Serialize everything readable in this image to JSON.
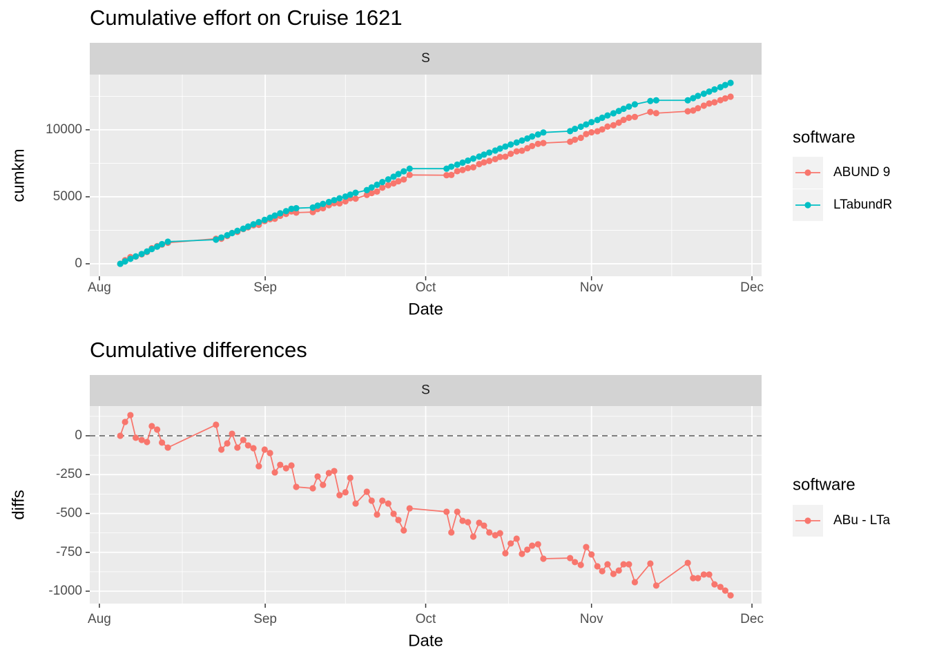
{
  "chart_data": [
    {
      "type": "line",
      "title": "Cumulative effort on Cruise 1621",
      "strip": "S",
      "x_label": "Date",
      "y_label": "cumkm",
      "legend_title": "software",
      "x": [
        3.9,
        4.8,
        5.8,
        6.8,
        7.9,
        8.9,
        9.8,
        10.8,
        11.7,
        12.8,
        21.8,
        22.8,
        23.9,
        24.8,
        25.8,
        26.9,
        27.8,
        28.8,
        29.8,
        30.9,
        31.9,
        32.8,
        33.8,
        34.9,
        35.9,
        36.8,
        39.9,
        40.8,
        41.8,
        42.9,
        43.9,
        44.9,
        46,
        46.9,
        47.9,
        50,
        50.9,
        51.9,
        52.9,
        54,
        55,
        55.9,
        56.9,
        58,
        64.9,
        65.8,
        66.9,
        67.9,
        68.9,
        69.9,
        71,
        71.9,
        72.9,
        74,
        74.9,
        75.9,
        76.9,
        78,
        79,
        80,
        80.9,
        82,
        83,
        88,
        88.9,
        90,
        91,
        92,
        93.1,
        94,
        95,
        96.1,
        97.1,
        98,
        99,
        100.1,
        103,
        104.1,
        110,
        111,
        111.9,
        113,
        114,
        115,
        116.1,
        117,
        118
      ],
      "series": [
        {
          "name": "ABUND 9",
          "color": "#F8766D",
          "values": [
            0,
            270,
            500,
            540,
            700,
            880,
            1160,
            1320,
            1430,
            1570,
            1870,
            1870,
            2080,
            2300,
            2380,
            2590,
            2720,
            2870,
            2910,
            3190,
            3330,
            3360,
            3580,
            3720,
            3910,
            3820,
            3860,
            4080,
            4150,
            4370,
            4520,
            4510,
            4660,
            4890,
            4860,
            5140,
            5280,
            5390,
            5680,
            5860,
            6000,
            6160,
            6290,
            6630,
            6610,
            6630,
            6910,
            7000,
            7140,
            7200,
            7440,
            7570,
            7680,
            7810,
            7970,
            7990,
            8210,
            8390,
            8440,
            8620,
            8790,
            8950,
            9010,
            9110,
            9260,
            9400,
            9680,
            9810,
            9890,
            10030,
            10240,
            10340,
            10530,
            10740,
            10900,
            10960,
            11330,
            11240,
            11380,
            11440,
            11610,
            11800,
            11960,
            12050,
            12210,
            12340,
            12470
          ]
        },
        {
          "name": "LTabundR",
          "color": "#00BFC4",
          "values": [
            0,
            180,
            370,
            550,
            730,
            920,
            1100,
            1280,
            1470,
            1650,
            1800,
            1960,
            2130,
            2290,
            2460,
            2620,
            2780,
            2950,
            3110,
            3280,
            3440,
            3600,
            3770,
            3930,
            4100,
            4150,
            4200,
            4340,
            4470,
            4610,
            4750,
            4890,
            5020,
            5160,
            5300,
            5500,
            5700,
            5900,
            6100,
            6300,
            6500,
            6700,
            6900,
            7100,
            7100,
            7250,
            7400,
            7550,
            7700,
            7850,
            8000,
            8150,
            8300,
            8450,
            8600,
            8750,
            8900,
            9050,
            9200,
            9350,
            9500,
            9650,
            9800,
            9900,
            10070,
            10230,
            10400,
            10570,
            10730,
            10900,
            11070,
            11230,
            11400,
            11570,
            11730,
            11900,
            12150,
            12200,
            12200,
            12360,
            12530,
            12690,
            12850,
            13010,
            13180,
            13340,
            13500
          ]
        }
      ],
      "xlim": [
        -1.8,
        123.8
      ],
      "xticks": [
        {
          "value": 0,
          "label": "Aug"
        },
        {
          "value": 31,
          "label": "Sep"
        },
        {
          "value": 61,
          "label": "Oct"
        },
        {
          "value": 92,
          "label": "Nov"
        },
        {
          "value": 122,
          "label": "Dec"
        }
      ],
      "ylim": [
        -930,
        14120
      ],
      "yticks": [
        0,
        5000,
        10000
      ],
      "grid": true
    },
    {
      "type": "line",
      "title": "Cumulative differences",
      "strip": "S",
      "x_label": "Date",
      "y_label": "diffs",
      "legend_title": "software",
      "x": [
        3.9,
        4.8,
        5.8,
        6.8,
        7.9,
        8.9,
        9.8,
        10.8,
        11.7,
        12.8,
        21.8,
        22.8,
        23.9,
        24.8,
        25.8,
        26.9,
        27.8,
        28.8,
        29.8,
        30.9,
        31.9,
        32.8,
        33.8,
        34.9,
        35.9,
        36.8,
        39.9,
        40.8,
        41.8,
        42.9,
        43.9,
        44.9,
        46,
        46.9,
        47.9,
        50,
        50.9,
        51.9,
        52.9,
        54,
        55,
        55.9,
        56.9,
        58,
        64.9,
        65.8,
        66.9,
        67.9,
        68.9,
        69.9,
        71,
        71.9,
        72.9,
        74,
        74.9,
        75.9,
        76.9,
        78,
        79,
        80,
        80.9,
        82,
        83,
        88,
        88.9,
        90,
        91,
        92,
        93.1,
        94,
        95,
        96.1,
        97.1,
        98,
        99,
        100.1,
        103,
        104.1,
        110,
        111,
        111.9,
        113,
        114,
        115,
        116.1,
        117,
        118
      ],
      "series": [
        {
          "name": "ABu - LTa",
          "color": "#F8766D",
          "values": [
            0,
            89,
            133,
            -13,
            -27,
            -40,
            62,
            40,
            -44,
            -76,
            71,
            -89,
            -49,
            13,
            -76,
            -27,
            -62,
            -80,
            -196,
            -89,
            -111,
            -236,
            -187,
            -209,
            -191,
            -329,
            -338,
            -262,
            -316,
            -240,
            -227,
            -382,
            -364,
            -271,
            -436,
            -360,
            -418,
            -507,
            -418,
            -436,
            -502,
            -542,
            -609,
            -467,
            -489,
            -622,
            -489,
            -547,
            -556,
            -649,
            -560,
            -578,
            -622,
            -640,
            -627,
            -756,
            -693,
            -662,
            -760,
            -733,
            -707,
            -698,
            -791,
            -787,
            -813,
            -831,
            -716,
            -764,
            -840,
            -871,
            -827,
            -889,
            -867,
            -827,
            -827,
            -942,
            -822,
            -964,
            -818,
            -916,
            -916,
            -893,
            -893,
            -956,
            -973,
            -996,
            -1027
          ]
        }
      ],
      "hline": 0,
      "xlim": [
        -1.8,
        123.8
      ],
      "xticks": [
        {
          "value": 0,
          "label": "Aug"
        },
        {
          "value": 31,
          "label": "Sep"
        },
        {
          "value": 61,
          "label": "Oct"
        },
        {
          "value": 92,
          "label": "Nov"
        },
        {
          "value": 122,
          "label": "Dec"
        }
      ],
      "ylim": [
        -1080,
        191
      ],
      "yticks": [
        0,
        -250,
        -500,
        -750,
        -1000
      ],
      "grid": true
    }
  ]
}
